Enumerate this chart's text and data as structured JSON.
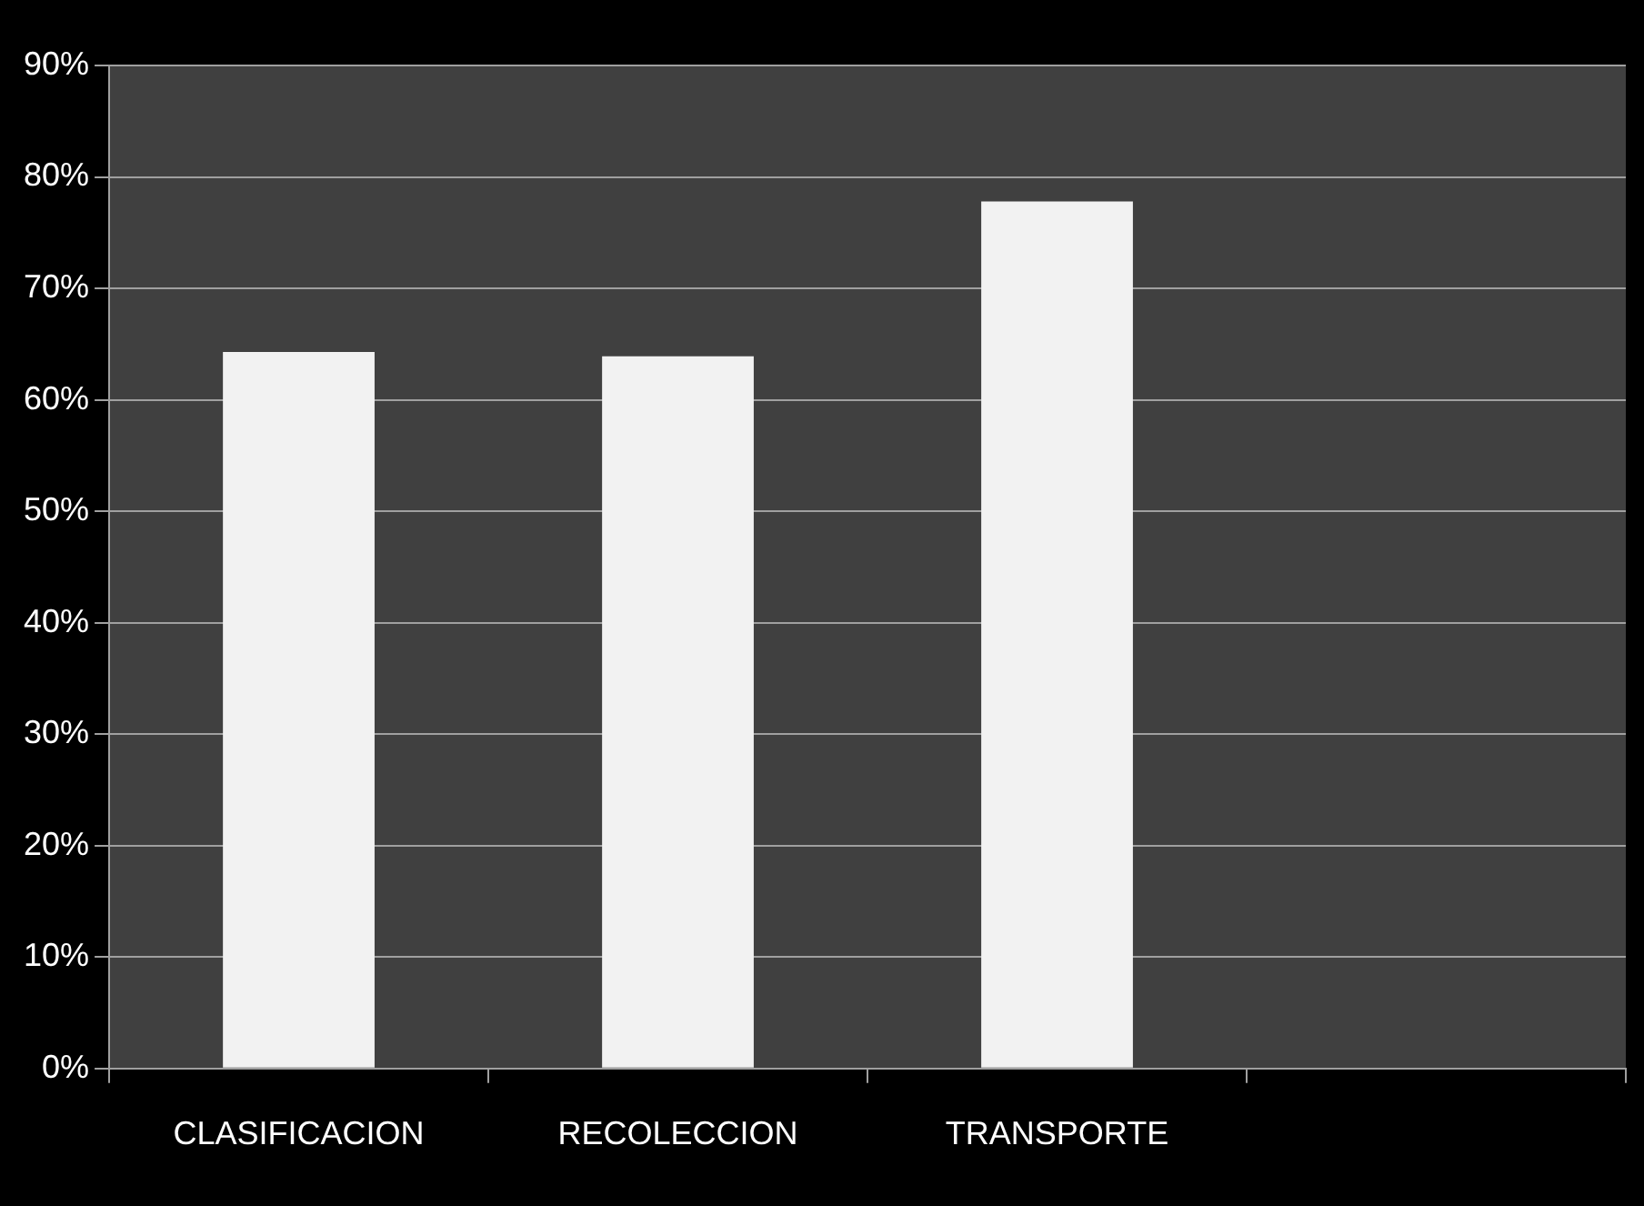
{
  "chart_data": {
    "type": "bar",
    "categories": [
      "CLASIFICACION",
      "RECOLECCION",
      "TRANSPORTE",
      null
    ],
    "values": [
      64.3,
      63.9,
      77.8,
      null
    ],
    "color": "#f2f2f2",
    "ylim": [
      0,
      90
    ],
    "yticks": [
      {
        "value": 0,
        "label": "0%"
      },
      {
        "value": 10,
        "label": "10%"
      },
      {
        "value": 20,
        "label": "20%"
      },
      {
        "value": 30,
        "label": "30%"
      },
      {
        "value": 40,
        "label": "40%"
      },
      {
        "value": 50,
        "label": "50%"
      },
      {
        "value": 60,
        "label": "60%"
      },
      {
        "value": 70,
        "label": "70%"
      },
      {
        "value": 80,
        "label": "80%"
      },
      {
        "value": 90,
        "label": "90%"
      }
    ],
    "grid": "y",
    "legend": false
  }
}
